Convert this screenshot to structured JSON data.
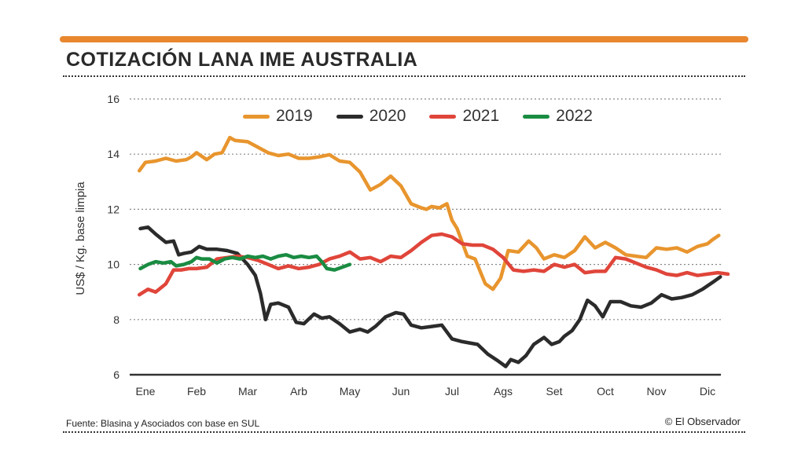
{
  "header": {
    "title": "COTIZACIÓN LANA IME AUSTRALIA",
    "accent_color": "#e8872e"
  },
  "footer": {
    "source": "Fuente: Blasina y Asociados con base en SUL",
    "credit": "© El Observador"
  },
  "chart_data": {
    "type": "line",
    "title": "COTIZACIÓN LANA IME AUSTRALIA",
    "xlabel": "",
    "ylabel": "US$ / Kg. base limpia",
    "ylim": [
      6,
      16
    ],
    "xlim": [
      0,
      11.5
    ],
    "y_ticks": [
      6,
      8,
      10,
      12,
      14,
      16
    ],
    "x_ticks": [
      "Ene",
      "Feb",
      "Mar",
      "Arb",
      "May",
      "Jun",
      "Jul",
      "Ags",
      "Set",
      "Oct",
      "Nov",
      "Dic"
    ],
    "grid": "horizontal dotted",
    "legend_position": "top-center",
    "series": [
      {
        "name": "2019",
        "color": "#e8952e",
        "x": [
          -0.12,
          0.0,
          0.2,
          0.4,
          0.6,
          0.8,
          0.9,
          1.0,
          1.2,
          1.35,
          1.5,
          1.65,
          1.75,
          2.0,
          2.2,
          2.4,
          2.6,
          2.8,
          3.0,
          3.2,
          3.4,
          3.6,
          3.8,
          4.0,
          4.2,
          4.4,
          4.6,
          4.8,
          5.0,
          5.2,
          5.4,
          5.5,
          5.6,
          5.75,
          5.9,
          6.0,
          6.1,
          6.3,
          6.45,
          6.65,
          6.8,
          6.95,
          7.1,
          7.3,
          7.5,
          7.65,
          7.8,
          8.0,
          8.2,
          8.4,
          8.6,
          8.8,
          9.0,
          9.2,
          9.4,
          9.6,
          9.8,
          10.0,
          10.2,
          10.4,
          10.6,
          10.8,
          11.0,
          11.1,
          11.22
        ],
        "y": [
          13.4,
          13.7,
          13.75,
          13.85,
          13.75,
          13.8,
          13.9,
          14.05,
          13.8,
          14.0,
          14.05,
          14.6,
          14.5,
          14.45,
          14.25,
          14.05,
          13.95,
          14.0,
          13.85,
          13.85,
          13.9,
          13.98,
          13.75,
          13.7,
          13.35,
          12.7,
          12.9,
          13.2,
          12.85,
          12.2,
          12.05,
          12.0,
          12.1,
          12.05,
          12.2,
          11.6,
          11.3,
          10.3,
          10.2,
          9.3,
          9.1,
          9.5,
          10.5,
          10.45,
          10.85,
          10.6,
          10.2,
          10.35,
          10.25,
          10.5,
          11.0,
          10.6,
          10.8,
          10.6,
          10.35,
          10.3,
          10.25,
          10.6,
          10.55,
          10.6,
          10.45,
          10.65,
          10.75,
          10.9,
          11.05
        ]
      },
      {
        "name": "2020",
        "color": "#2b2b2b",
        "x": [
          -0.1,
          0.05,
          0.2,
          0.4,
          0.55,
          0.65,
          0.75,
          0.9,
          1.05,
          1.2,
          1.4,
          1.6,
          1.8,
          2.0,
          2.15,
          2.25,
          2.35,
          2.45,
          2.6,
          2.8,
          2.95,
          3.1,
          3.3,
          3.45,
          3.6,
          3.8,
          4.0,
          4.2,
          4.35,
          4.5,
          4.7,
          4.9,
          5.05,
          5.2,
          5.4,
          5.6,
          5.8,
          6.0,
          6.2,
          6.5,
          6.7,
          6.9,
          7.05,
          7.15,
          7.3,
          7.45,
          7.6,
          7.8,
          7.95,
          8.1,
          8.2,
          8.35,
          8.5,
          8.65,
          8.8,
          8.95,
          9.1,
          9.3,
          9.5,
          9.7,
          9.9,
          10.1,
          10.3,
          10.5,
          10.7,
          10.9,
          11.1,
          11.25
        ],
        "y": [
          11.3,
          11.35,
          11.1,
          10.8,
          10.85,
          10.35,
          10.4,
          10.45,
          10.65,
          10.55,
          10.55,
          10.5,
          10.4,
          10.0,
          9.6,
          8.95,
          8.0,
          8.55,
          8.6,
          8.45,
          7.9,
          7.85,
          8.2,
          8.05,
          8.1,
          7.85,
          7.55,
          7.65,
          7.55,
          7.75,
          8.1,
          8.25,
          8.2,
          7.8,
          7.7,
          7.75,
          7.8,
          7.3,
          7.2,
          7.1,
          6.75,
          6.5,
          6.3,
          6.55,
          6.45,
          6.7,
          7.1,
          7.35,
          7.1,
          7.2,
          7.4,
          7.6,
          8.0,
          8.7,
          8.5,
          8.1,
          8.65,
          8.65,
          8.5,
          8.45,
          8.6,
          8.9,
          8.75,
          8.8,
          8.9,
          9.1,
          9.35,
          9.55
        ]
      },
      {
        "name": "2021",
        "color": "#e0453a",
        "x": [
          -0.12,
          0.05,
          0.2,
          0.4,
          0.55,
          0.7,
          0.85,
          1.0,
          1.2,
          1.4,
          1.6,
          1.8,
          2.0,
          2.2,
          2.4,
          2.6,
          2.8,
          3.0,
          3.2,
          3.4,
          3.6,
          3.8,
          4.0,
          4.2,
          4.4,
          4.6,
          4.8,
          5.0,
          5.2,
          5.4,
          5.6,
          5.8,
          6.0,
          6.2,
          6.4,
          6.6,
          6.8,
          7.0,
          7.2,
          7.4,
          7.6,
          7.8,
          8.0,
          8.2,
          8.4,
          8.6,
          8.8,
          9.0,
          9.2,
          9.4,
          9.6,
          9.8,
          10.0,
          10.2,
          10.4,
          10.6,
          10.8,
          11.0,
          11.2,
          11.4
        ],
        "y": [
          8.9,
          9.1,
          9.0,
          9.3,
          9.8,
          9.8,
          9.85,
          9.85,
          9.9,
          10.2,
          10.25,
          10.3,
          10.25,
          10.15,
          10.0,
          9.85,
          9.95,
          9.85,
          9.9,
          10.0,
          10.2,
          10.3,
          10.45,
          10.2,
          10.25,
          10.1,
          10.3,
          10.25,
          10.5,
          10.8,
          11.05,
          11.1,
          11.0,
          10.75,
          10.7,
          10.7,
          10.55,
          10.25,
          9.8,
          9.75,
          9.8,
          9.75,
          10.0,
          9.9,
          10.0,
          9.7,
          9.75,
          9.75,
          10.25,
          10.2,
          10.05,
          9.9,
          9.8,
          9.65,
          9.6,
          9.7,
          9.6,
          9.65,
          9.7,
          9.65
        ]
      },
      {
        "name": "2022",
        "color": "#1a8c42",
        "x": [
          -0.1,
          0.05,
          0.2,
          0.35,
          0.5,
          0.6,
          0.75,
          0.9,
          1.0,
          1.1,
          1.25,
          1.4,
          1.55,
          1.7,
          1.85,
          2.0,
          2.15,
          2.3,
          2.45,
          2.6,
          2.75,
          2.9,
          3.05,
          3.2,
          3.35,
          3.45,
          3.55,
          3.7,
          3.85,
          4.0
        ],
        "y": [
          9.85,
          10.0,
          10.1,
          10.05,
          10.1,
          9.95,
          10.0,
          10.1,
          10.25,
          10.2,
          10.2,
          10.05,
          10.2,
          10.25,
          10.2,
          10.3,
          10.25,
          10.3,
          10.2,
          10.3,
          10.35,
          10.25,
          10.3,
          10.25,
          10.3,
          10.1,
          9.85,
          9.8,
          9.9,
          10.0
        ]
      }
    ]
  }
}
